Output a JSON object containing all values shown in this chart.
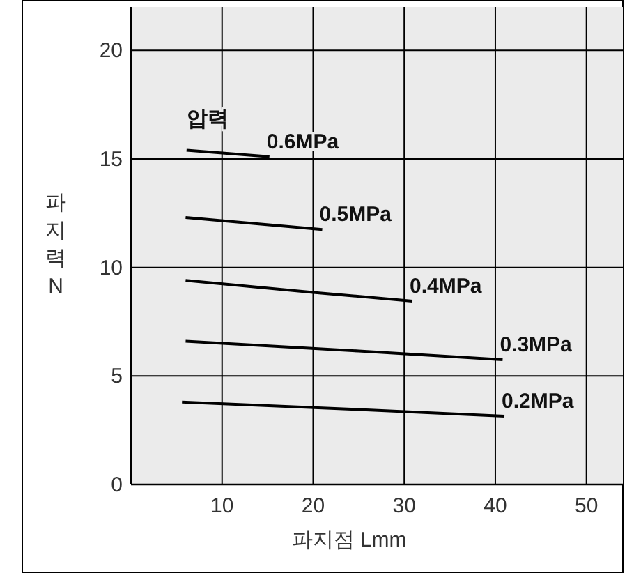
{
  "chart_data": {
    "type": "line",
    "xlabel": "파지점 Lmm",
    "ylabel": "파지력 N",
    "legend_title": "압력",
    "xlim": [
      0,
      54
    ],
    "ylim": [
      0,
      22
    ],
    "xticks": [
      10,
      20,
      30,
      40,
      50
    ],
    "yticks": [
      0,
      5,
      10,
      15,
      20
    ],
    "grid": true,
    "marker": "none",
    "line_style": "solid",
    "series": [
      {
        "name": "0.6MPa",
        "color": "#000000",
        "x": [
          6.1,
          15.2
        ],
        "values": [
          15.4,
          15.1
        ]
      },
      {
        "name": "0.5MPa",
        "color": "#000000",
        "x": [
          6,
          21
        ],
        "values": [
          12.3,
          11.75
        ]
      },
      {
        "name": "0.4MPa",
        "color": "#000000",
        "x": [
          6,
          20,
          30.9
        ],
        "values": [
          9.4,
          8.85,
          8.45
        ]
      },
      {
        "name": "0.3MPa",
        "color": "#000000",
        "x": [
          6,
          25,
          40.8
        ],
        "values": [
          6.6,
          6.15,
          5.75
        ]
      },
      {
        "name": "0.2MPa",
        "color": "#000000",
        "x": [
          5.6,
          25,
          41
        ],
        "values": [
          3.8,
          3.45,
          3.15
        ]
      }
    ]
  }
}
